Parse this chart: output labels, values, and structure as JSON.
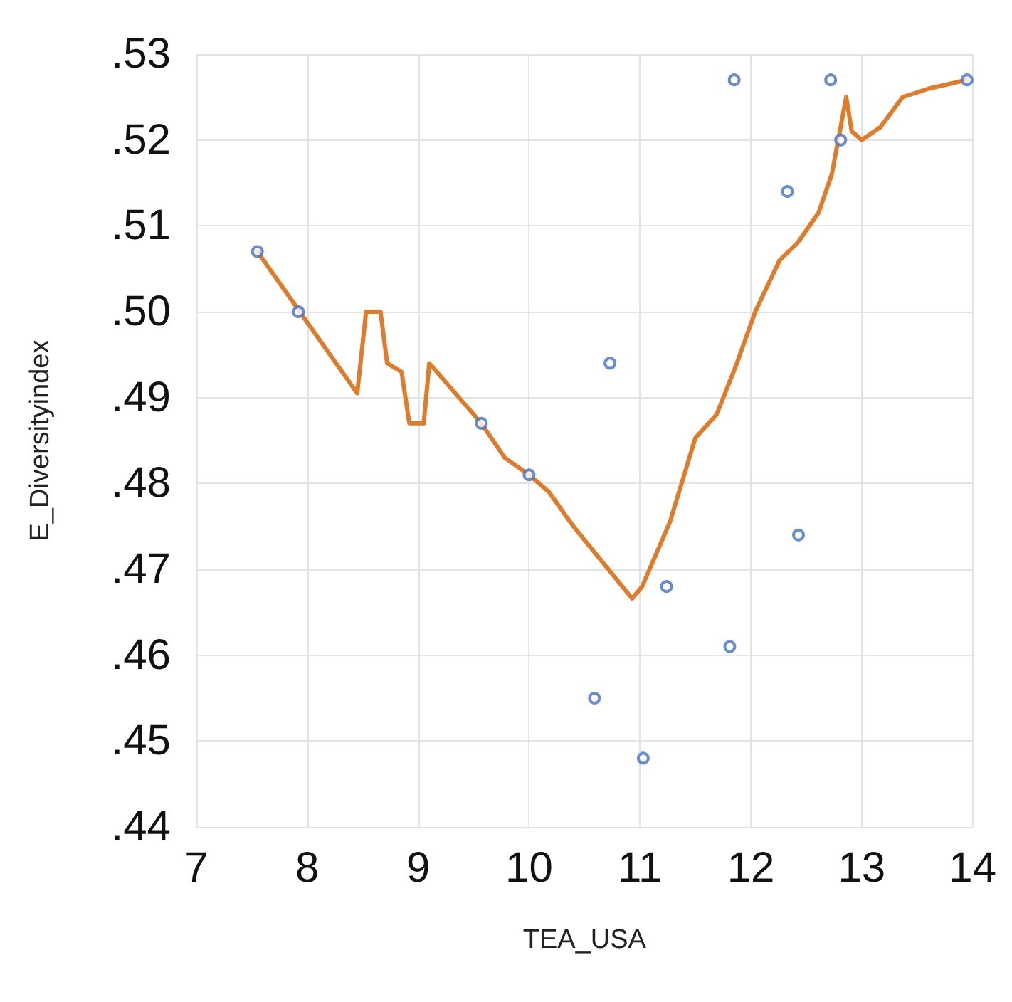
{
  "chart_data": {
    "type": "scatter",
    "xlabel": "TEA_USA",
    "ylabel": "E_Diversityindex",
    "xlim": [
      7,
      14
    ],
    "xticks": [
      7,
      8,
      9,
      10,
      11,
      12,
      13,
      14
    ],
    "ylim": [
      0.44,
      0.53
    ],
    "yticks": [
      {
        "value": 0.44,
        "label": ".44"
      },
      {
        "value": 0.45,
        "label": ".45"
      },
      {
        "value": 0.46,
        "label": ".46"
      },
      {
        "value": 0.47,
        "label": ".47"
      },
      {
        "value": 0.48,
        "label": ".48"
      },
      {
        "value": 0.49,
        "label": ".49"
      },
      {
        "value": 0.5,
        "label": ".50"
      },
      {
        "value": 0.51,
        "label": ".51"
      },
      {
        "value": 0.52,
        "label": ".52"
      },
      {
        "value": 0.53,
        "label": ".53"
      }
    ],
    "grid": true,
    "marker": "circle",
    "series": [
      {
        "color": "#4472c4",
        "x": [
          7.55,
          7.92,
          9.57,
          10.0,
          10.73,
          10.59,
          11.03,
          11.24,
          11.81,
          11.85,
          12.33,
          12.43,
          12.72,
          12.81,
          13.95
        ],
        "values": [
          0.507,
          0.5,
          0.487,
          0.481,
          0.494,
          0.455,
          0.448,
          0.468,
          0.461,
          0.527,
          0.514,
          0.474,
          0.527,
          0.52,
          0.527
        ]
      },
      {
        "type": "line",
        "color": "#e07b2a",
        "line_style": "solid",
        "marker": "none",
        "x": [
          7.55,
          8.45,
          8.53,
          8.66,
          8.72,
          8.85,
          8.92,
          9.05,
          9.1,
          9.57,
          9.78,
          10.0,
          10.18,
          10.4,
          10.93,
          11.02,
          11.27,
          11.5,
          11.69,
          11.86,
          12.04,
          12.26,
          12.42,
          12.61,
          12.73,
          12.81,
          12.86,
          12.91,
          13.0,
          13.17,
          13.37,
          13.61,
          13.95
        ],
        "values": [
          0.507,
          0.4905,
          0.5,
          0.5,
          0.494,
          0.493,
          0.487,
          0.487,
          0.494,
          0.487,
          0.483,
          0.481,
          0.479,
          0.475,
          0.4666,
          0.468,
          0.4755,
          0.4853,
          0.488,
          0.4935,
          0.5,
          0.506,
          0.508,
          0.5115,
          0.516,
          0.5215,
          0.525,
          0.521,
          0.52,
          0.5215,
          0.525,
          0.526,
          0.527
        ]
      }
    ]
  }
}
